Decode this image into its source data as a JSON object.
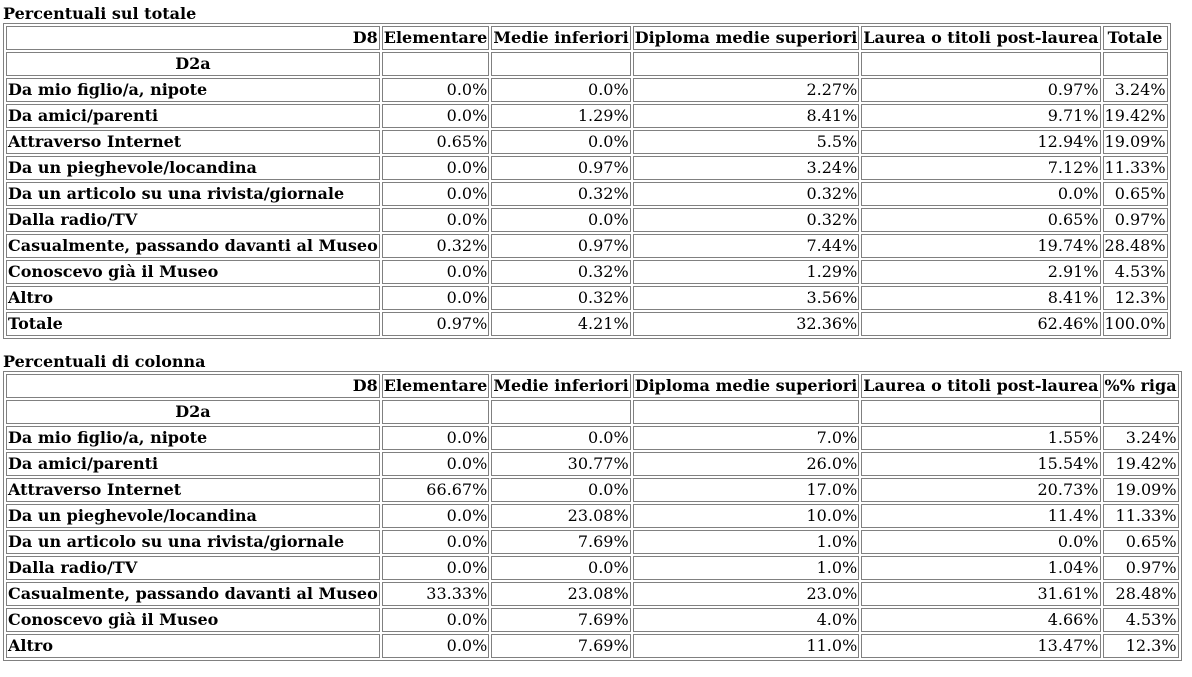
{
  "tables": [
    {
      "caption": "Percentuali sul totale",
      "corner_label": "D8",
      "row_var_label": "D2a",
      "columns": [
        "Elementare",
        "Medie inferiori",
        "Diploma medie superiori",
        "Laurea o titoli post-laurea",
        "Totale"
      ],
      "rows": [
        {
          "label": "Da mio figlio/a, nipote",
          "values": [
            "0.0%",
            "0.0%",
            "2.27%",
            "0.97%",
            "3.24%"
          ]
        },
        {
          "label": "Da amici/parenti",
          "values": [
            "0.0%",
            "1.29%",
            "8.41%",
            "9.71%",
            "19.42%"
          ]
        },
        {
          "label": "Attraverso Internet",
          "values": [
            "0.65%",
            "0.0%",
            "5.5%",
            "12.94%",
            "19.09%"
          ]
        },
        {
          "label": "Da un pieghevole/locandina",
          "values": [
            "0.0%",
            "0.97%",
            "3.24%",
            "7.12%",
            "11.33%"
          ]
        },
        {
          "label": "Da un articolo su una rivista/giornale",
          "values": [
            "0.0%",
            "0.32%",
            "0.32%",
            "0.0%",
            "0.65%"
          ]
        },
        {
          "label": "Dalla radio/TV",
          "values": [
            "0.0%",
            "0.0%",
            "0.32%",
            "0.65%",
            "0.97%"
          ]
        },
        {
          "label": "Casualmente, passando davanti al Museo",
          "values": [
            "0.32%",
            "0.97%",
            "7.44%",
            "19.74%",
            "28.48%"
          ]
        },
        {
          "label": "Conoscevo già il Museo",
          "values": [
            "0.0%",
            "0.32%",
            "1.29%",
            "2.91%",
            "4.53%"
          ]
        },
        {
          "label": "Altro",
          "values": [
            "0.0%",
            "0.32%",
            "3.56%",
            "8.41%",
            "12.3%"
          ]
        },
        {
          "label": "Totale",
          "values": [
            "0.97%",
            "4.21%",
            "32.36%",
            "62.46%",
            "100.0%"
          ]
        }
      ]
    },
    {
      "caption": "Percentuali di colonna",
      "corner_label": "D8",
      "row_var_label": "D2a",
      "columns": [
        "Elementare",
        "Medie inferiori",
        "Diploma medie superiori",
        "Laurea o titoli post-laurea",
        "%% riga"
      ],
      "rows": [
        {
          "label": "Da mio figlio/a, nipote",
          "values": [
            "0.0%",
            "0.0%",
            "7.0%",
            "1.55%",
            "3.24%"
          ]
        },
        {
          "label": "Da amici/parenti",
          "values": [
            "0.0%",
            "30.77%",
            "26.0%",
            "15.54%",
            "19.42%"
          ]
        },
        {
          "label": "Attraverso Internet",
          "values": [
            "66.67%",
            "0.0%",
            "17.0%",
            "20.73%",
            "19.09%"
          ]
        },
        {
          "label": "Da un pieghevole/locandina",
          "values": [
            "0.0%",
            "23.08%",
            "10.0%",
            "11.4%",
            "11.33%"
          ]
        },
        {
          "label": "Da un articolo su una rivista/giornale",
          "values": [
            "0.0%",
            "7.69%",
            "1.0%",
            "0.0%",
            "0.65%"
          ]
        },
        {
          "label": "Dalla radio/TV",
          "values": [
            "0.0%",
            "0.0%",
            "1.0%",
            "1.04%",
            "0.97%"
          ]
        },
        {
          "label": "Casualmente, passando davanti al Museo",
          "values": [
            "33.33%",
            "23.08%",
            "23.0%",
            "31.61%",
            "28.48%"
          ]
        },
        {
          "label": "Conoscevo già il Museo",
          "values": [
            "0.0%",
            "7.69%",
            "4.0%",
            "4.66%",
            "4.53%"
          ]
        },
        {
          "label": "Altro",
          "values": [
            "0.0%",
            "7.69%",
            "11.0%",
            "13.47%",
            "12.3%"
          ]
        }
      ]
    }
  ]
}
